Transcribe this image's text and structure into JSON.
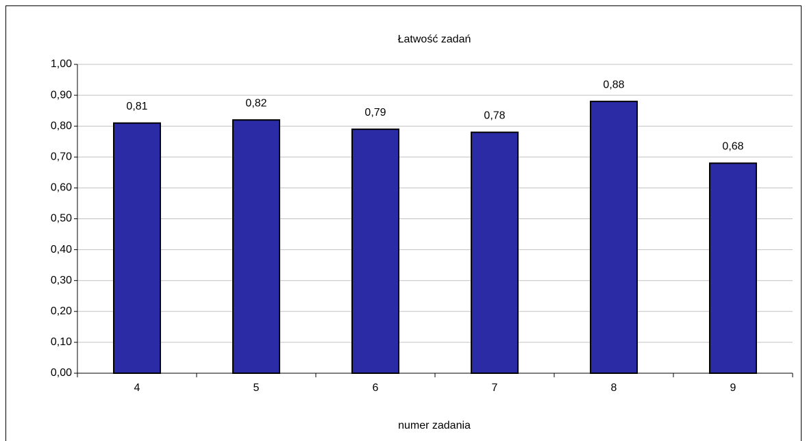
{
  "chart_data": {
    "type": "bar",
    "title": "Łatwość zadań",
    "x_label": "numer zadania",
    "categories": [
      "4",
      "5",
      "6",
      "7",
      "8",
      "9"
    ],
    "values": [
      0.81,
      0.82,
      0.79,
      0.78,
      0.88,
      0.68
    ],
    "value_labels": [
      "0,81",
      "0,82",
      "0,79",
      "0,78",
      "0,88",
      "0,68"
    ],
    "color": "#2b2ba5",
    "ylim": [
      0,
      1
    ],
    "yticks": [
      {
        "value": 0,
        "label": "0,00"
      },
      {
        "value": 0.1,
        "label": "0,10"
      },
      {
        "value": 0.2,
        "label": "0,20"
      },
      {
        "value": 0.3,
        "label": "0,30"
      },
      {
        "value": 0.4,
        "label": "0,40"
      },
      {
        "value": 0.5,
        "label": "0,50"
      },
      {
        "value": 0.6,
        "label": "0,60"
      },
      {
        "value": 0.7,
        "label": "0,70"
      },
      {
        "value": 0.8,
        "label": "0,80"
      },
      {
        "value": 0.9,
        "label": "0,90"
      },
      {
        "value": 1,
        "label": "1,00"
      }
    ],
    "grid": true
  }
}
